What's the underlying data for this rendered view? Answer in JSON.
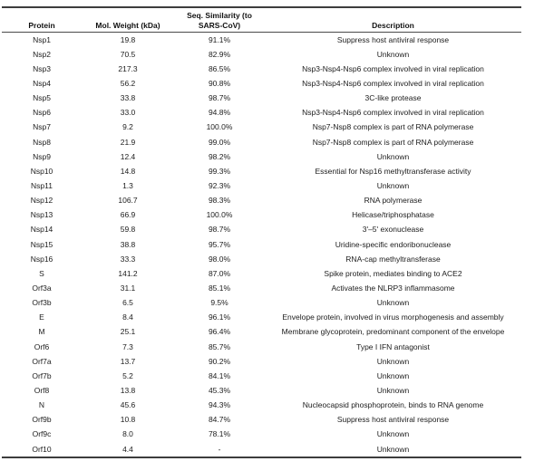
{
  "table": {
    "headers": [
      "Protein",
      "Mol. Weight (kDa)",
      "Seq. Similarity (to SARS-CoV)",
      "Description"
    ],
    "rows": [
      {
        "protein": "Nsp1",
        "mol_weight_kda": "19.8",
        "seq_similarity": "91.1%",
        "description": "Suppress host antiviral response"
      },
      {
        "protein": "Nsp2",
        "mol_weight_kda": "70.5",
        "seq_similarity": "82.9%",
        "description": "Unknown"
      },
      {
        "protein": "Nsp3",
        "mol_weight_kda": "217.3",
        "seq_similarity": "86.5%",
        "description": "Nsp3-Nsp4-Nsp6 complex involved in viral replication"
      },
      {
        "protein": "Nsp4",
        "mol_weight_kda": "56.2",
        "seq_similarity": "90.8%",
        "description": "Nsp3-Nsp4-Nsp6 complex involved in viral replication"
      },
      {
        "protein": "Nsp5",
        "mol_weight_kda": "33.8",
        "seq_similarity": "98.7%",
        "description": "3C-like protease"
      },
      {
        "protein": "Nsp6",
        "mol_weight_kda": "33.0",
        "seq_similarity": "94.8%",
        "description": "Nsp3-Nsp4-Nsp6 complex involved in viral replication"
      },
      {
        "protein": "Nsp7",
        "mol_weight_kda": "9.2",
        "seq_similarity": "100.0%",
        "description": "Nsp7-Nsp8 complex is part of RNA polymerase"
      },
      {
        "protein": "Nsp8",
        "mol_weight_kda": "21.9",
        "seq_similarity": "99.0%",
        "description": "Nsp7-Nsp8 complex is part of RNA polymerase"
      },
      {
        "protein": "Nsp9",
        "mol_weight_kda": "12.4",
        "seq_similarity": "98.2%",
        "description": "Unknown"
      },
      {
        "protein": "Nsp10",
        "mol_weight_kda": "14.8",
        "seq_similarity": "99.3%",
        "description": "Essential for Nsp16 methyltransferase activity"
      },
      {
        "protein": "Nsp11",
        "mol_weight_kda": "1.3",
        "seq_similarity": "92.3%",
        "description": "Unknown"
      },
      {
        "protein": "Nsp12",
        "mol_weight_kda": "106.7",
        "seq_similarity": "98.3%",
        "description": "RNA polymerase"
      },
      {
        "protein": "Nsp13",
        "mol_weight_kda": "66.9",
        "seq_similarity": "100.0%",
        "description": "Helicase/triphosphatase"
      },
      {
        "protein": "Nsp14",
        "mol_weight_kda": "59.8",
        "seq_similarity": "98.7%",
        "description": "3'–5' exonuclease"
      },
      {
        "protein": "Nsp15",
        "mol_weight_kda": "38.8",
        "seq_similarity": "95.7%",
        "description": "Uridine-specific endoribonuclease"
      },
      {
        "protein": "Nsp16",
        "mol_weight_kda": "33.3",
        "seq_similarity": "98.0%",
        "description": "RNA-cap methyltransferase"
      },
      {
        "protein": "S",
        "mol_weight_kda": "141.2",
        "seq_similarity": "87.0%",
        "description": "Spike protein, mediates binding to ACE2"
      },
      {
        "protein": "Orf3a",
        "mol_weight_kda": "31.1",
        "seq_similarity": "85.1%",
        "description": "Activates the NLRP3 inflammasome"
      },
      {
        "protein": "Orf3b",
        "mol_weight_kda": "6.5",
        "seq_similarity": "9.5%",
        "description": "Unknown"
      },
      {
        "protein": "E",
        "mol_weight_kda": "8.4",
        "seq_similarity": "96.1%",
        "description": "Envelope protein, involved in virus morphogenesis and assembly"
      },
      {
        "protein": "M",
        "mol_weight_kda": "25.1",
        "seq_similarity": "96.4%",
        "description": "Membrane glycoprotein, predominant component of the envelope"
      },
      {
        "protein": "Orf6",
        "mol_weight_kda": "7.3",
        "seq_similarity": "85.7%",
        "description": "Type I IFN antagonist"
      },
      {
        "protein": "Orf7a",
        "mol_weight_kda": "13.7",
        "seq_similarity": "90.2%",
        "description": "Unknown"
      },
      {
        "protein": "Orf7b",
        "mol_weight_kda": "5.2",
        "seq_similarity": "84.1%",
        "description": "Unknown"
      },
      {
        "protein": "Orf8",
        "mol_weight_kda": "13.8",
        "seq_similarity": "45.3%",
        "description": "Unknown"
      },
      {
        "protein": "N",
        "mol_weight_kda": "45.6",
        "seq_similarity": "94.3%",
        "description": "Nucleocapsid phosphoprotein, binds to RNA genome"
      },
      {
        "protein": "Orf9b",
        "mol_weight_kda": "10.8",
        "seq_similarity": "84.7%",
        "description": "Suppress host antiviral response"
      },
      {
        "protein": "Orf9c",
        "mol_weight_kda": "8.0",
        "seq_similarity": "78.1%",
        "description": "Unknown"
      },
      {
        "protein": "Orf10",
        "mol_weight_kda": "4.4",
        "seq_similarity": "-",
        "description": "Unknown"
      }
    ]
  }
}
